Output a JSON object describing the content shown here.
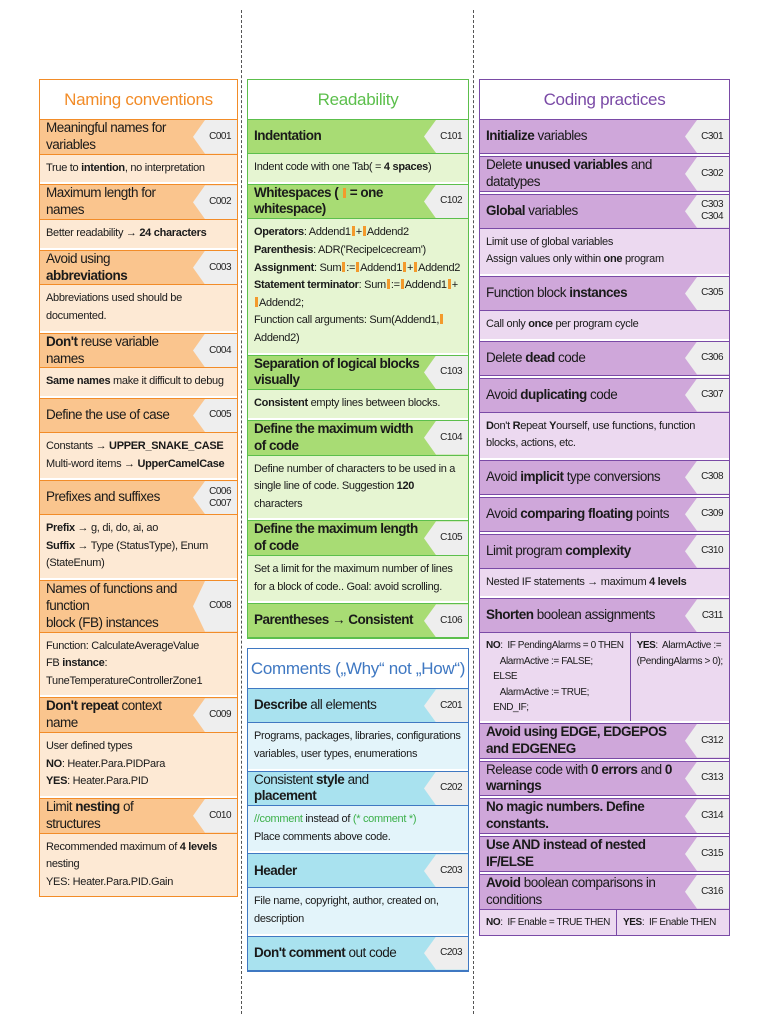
{
  "naming": {
    "title": "Naming conventions",
    "color": "#f28c28",
    "rules": [
      {
        "code": "C001",
        "head": [
          "Meaningful names for variables"
        ],
        "body": [
          "True to |intention|, no interpretation"
        ]
      },
      {
        "code": "C002",
        "head": [
          "Maximum length for names"
        ],
        "body": [
          "Better readability → |24 characters|"
        ]
      },
      {
        "code": "C003",
        "head": [
          "Avoid using |abbreviations|"
        ],
        "body": [
          "Abbreviations used should be documented."
        ]
      },
      {
        "code": "C004",
        "head": [
          "|Don't| reuse variable names"
        ],
        "body": [
          "|Same names| make it difficult to debug"
        ]
      },
      {
        "code": "C005",
        "head": [
          "Define the use of case"
        ],
        "body": [
          "Constants → |UPPER_SNAKE_CASE|",
          "Multi-word items → |UpperCamelCase|"
        ]
      },
      {
        "code": "C006\nC007",
        "head": [
          "Prefixes and suffixes"
        ],
        "body": [
          "|Prefix| → g, di, do, ai, ao",
          "|Suffix| → Type (StatusType), Enum (StateEnum)"
        ]
      },
      {
        "code": "C008",
        "head": [
          "Names of functions and function",
          "block (FB) instances"
        ],
        "body": [
          "Function: CalculateAverageValue",
          "FB |instance|: TuneTemperatureControllerZone1"
        ]
      },
      {
        "code": "C009",
        "head": [
          "|Don't repeat| context name"
        ],
        "body": [
          "User defined types",
          "|NO|: Heater.Para.PIDPara",
          "|YES|: Heater.Para.PID"
        ]
      },
      {
        "code": "C010",
        "head": [
          "Limit |nesting| of structures"
        ],
        "body": [
          "Recommended maximum of |4 levels| nesting",
          "YES: Heater.Para.PID.Gain"
        ]
      }
    ]
  },
  "readability": {
    "title": "Readability",
    "color": "#5cbf4c",
    "rules": [
      {
        "code": "C101",
        "head": [
          "|Indentation|"
        ],
        "body": [
          "Indent code with one Tab( = |4 spaces|)"
        ]
      },
      {
        "code": "C102",
        "head": [
          "|Whitespaces ( _ = one whitespace)|"
        ],
        "body": [
          "|Operators|: Addend1_+_Addend2",
          "|Parenthesis|: ADR('RecipeIcecream')",
          "|Assignment|: Sum_:=_Addend1_+_Addend2",
          "|Statement terminator|: Sum_:=_Addend1_+_Addend2;",
          "Function call arguments: Sum(Addend1,_Addend2)"
        ]
      },
      {
        "code": "C103",
        "head": [
          "|Separation of logical blocks visually|"
        ],
        "body": [
          "|Consistent| empty lines between blocks."
        ]
      },
      {
        "code": "C104",
        "head": [
          "|Define the maximum width of code|"
        ],
        "body": [
          "Define number of characters to be used in a single line of code. Suggestion |120| characters"
        ]
      },
      {
        "code": "C105",
        "head": [
          "|Define the maximum length of code|"
        ],
        "body": [
          "Set a limit for the maximum number of lines for a block of code.. Goal: avoid scrolling."
        ]
      },
      {
        "code": "C106",
        "head": [
          "|Parentheses → Consistent|"
        ],
        "body": []
      }
    ]
  },
  "comments": {
    "title": "Comments („Why“ not „How“)",
    "color": "#3f78c2",
    "rules": [
      {
        "code": "C201",
        "head": [
          "|Describe| all elements"
        ],
        "body": [
          "Programs, packages, libraries, configurations variables, user types, enumerations"
        ]
      },
      {
        "code": "C202",
        "head": [
          "Consistent |style| and |placement|"
        ],
        "body": [
          "~//comment~ instead of ~(* comment *)~",
          "Place comments above code."
        ]
      },
      {
        "code": "C203",
        "head": [
          "|Header|"
        ],
        "body": [
          "File name, copyright, author, created on, description"
        ]
      },
      {
        "code": "C203",
        "head": [
          "|Don't comment| out code"
        ],
        "body": []
      }
    ]
  },
  "coding": {
    "title": "Coding practices",
    "color": "#7a4aa6",
    "rules": [
      {
        "code": "C301",
        "head": [
          "|Initialize| variables"
        ],
        "body": []
      },
      {
        "code": "C302",
        "head": [
          "Delete |unused variables| and datatypes"
        ],
        "body": []
      },
      {
        "code": "C303\nC304",
        "head": [
          "|Global| variables"
        ],
        "body": [
          "Limit use of global variables",
          "Assign values only within |one| program"
        ]
      },
      {
        "code": "C305",
        "head": [
          "Function block |instances|"
        ],
        "body": [
          "Call only |once| per program cycle"
        ]
      },
      {
        "code": "C306",
        "head": [
          "Delete |dead| code"
        ],
        "body": []
      },
      {
        "code": "C307",
        "head": [
          "Avoid |duplicating| code"
        ],
        "body": [
          "|D|on't |R|epeat |Y|ourself, use functions, function blocks, actions, etc."
        ]
      },
      {
        "code": "C308",
        "head": [
          "Avoid |implicit| type conversions"
        ],
        "body": []
      },
      {
        "code": "C309",
        "head": [
          "Avoid |comparing floating| points"
        ],
        "body": []
      },
      {
        "code": "C310",
        "head": [
          "Limit program |complexity|"
        ],
        "body": [
          "Nested IF statements → maximum |4 levels|"
        ]
      },
      {
        "code": "C311",
        "head": [
          "|Shorten| boolean assignments"
        ],
        "split": {
          "no": [
            "|NO|:  IF PendingAlarms = 0 THEN",
            "      AlarmActive := FALSE;",
            "   ELSE",
            "      AlarmActive := TRUE;",
            "   END_IF;"
          ],
          "yes": [
            "|YES|:  AlarmActive :=",
            "(PendingAlarms > 0);"
          ]
        }
      },
      {
        "code": "C312",
        "head": [
          "|Avoid using EDGE, EDGEPOS and EDGENEG|"
        ],
        "body": []
      },
      {
        "code": "C313",
        "head": [
          "Release code with |0 errors| and |0 warnings|"
        ],
        "body": []
      },
      {
        "code": "C314",
        "head": [
          "|No magic numbers. Define constants.|"
        ],
        "body": []
      },
      {
        "code": "C315",
        "head": [
          "|Use AND instead of nested IF/ELSE|"
        ],
        "body": []
      },
      {
        "code": "C316",
        "head": [
          "|Avoid| boolean comparisons in conditions"
        ],
        "split": {
          "no": [
            "|NO|:  IF Enable = TRUE THEN"
          ],
          "yes": [
            "|YES|:  IF Enable THEN"
          ]
        }
      }
    ]
  }
}
